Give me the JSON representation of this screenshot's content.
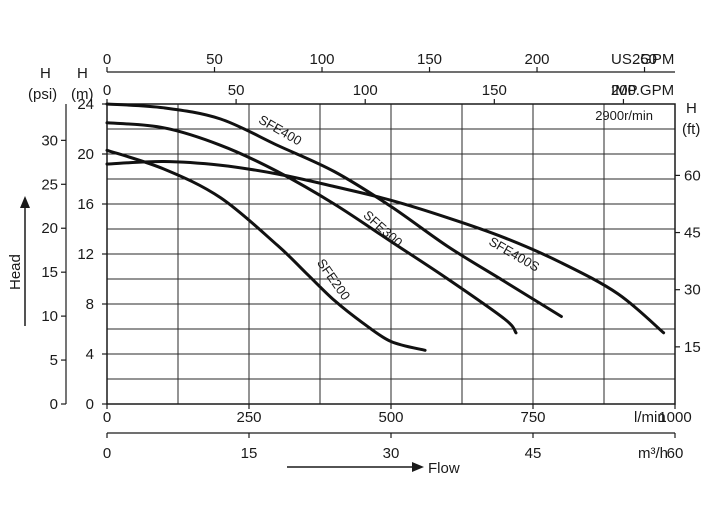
{
  "chart_data": {
    "type": "line",
    "note": "2900r/min",
    "y_axes": {
      "psi": {
        "label_top": "H",
        "label_bottom": "(psi)",
        "ticks": [
          0,
          5,
          10,
          15,
          20,
          25,
          30
        ]
      },
      "m": {
        "label_top": "H",
        "label_bottom": "(m)",
        "ticks": [
          0,
          4,
          8,
          12,
          16,
          20,
          24
        ],
        "range": [
          0,
          24
        ]
      },
      "ft": {
        "label_top": "H",
        "label_bottom": "(ft)",
        "ticks": [
          15,
          30,
          45,
          60
        ]
      }
    },
    "side_label": "Head",
    "x_axes": {
      "us_gpm": {
        "unit": "US .GPM",
        "ticks": [
          "0",
          "50",
          "100",
          "150",
          "200",
          "250"
        ]
      },
      "imp_gpm": {
        "unit": "IMP.GPM",
        "ticks": [
          "0",
          "50",
          "100",
          "150",
          "200"
        ]
      },
      "l_min": {
        "unit": "l/min",
        "ticks": [
          "0",
          "250",
          "500",
          "750",
          "1000"
        ],
        "range": [
          0,
          1000
        ]
      },
      "m3h": {
        "unit": "m³/h",
        "ticks": [
          "0",
          "15",
          "30",
          "45",
          "60"
        ]
      }
    },
    "bottom_label": "Flow",
    "series": [
      {
        "name": "SFE200",
        "x": [
          0,
          100,
          200,
          300,
          350,
          400,
          450,
          500,
          560
        ],
        "y": [
          20.3,
          18.8,
          16.5,
          12.7,
          10.5,
          8.3,
          6.5,
          5.0,
          4.3
        ]
      },
      {
        "name": "SFE300",
        "x": [
          0,
          100,
          200,
          300,
          400,
          500,
          600,
          700,
          720
        ],
        "y": [
          22.5,
          22.1,
          20.7,
          18.6,
          16.0,
          13.0,
          10.0,
          6.8,
          5.7
        ]
      },
      {
        "name": "SFE400",
        "x": [
          0,
          100,
          200,
          300,
          400,
          500,
          600,
          700,
          800
        ],
        "y": [
          24.0,
          23.7,
          22.8,
          20.7,
          18.6,
          15.8,
          12.6,
          9.8,
          7.0
        ]
      },
      {
        "name": "SFE400S",
        "x": [
          0,
          100,
          200,
          300,
          400,
          500,
          600,
          700,
          800,
          900,
          980
        ],
        "y": [
          19.2,
          19.4,
          19.1,
          18.4,
          17.4,
          16.3,
          14.9,
          13.3,
          11.3,
          8.8,
          5.7
        ]
      }
    ]
  }
}
